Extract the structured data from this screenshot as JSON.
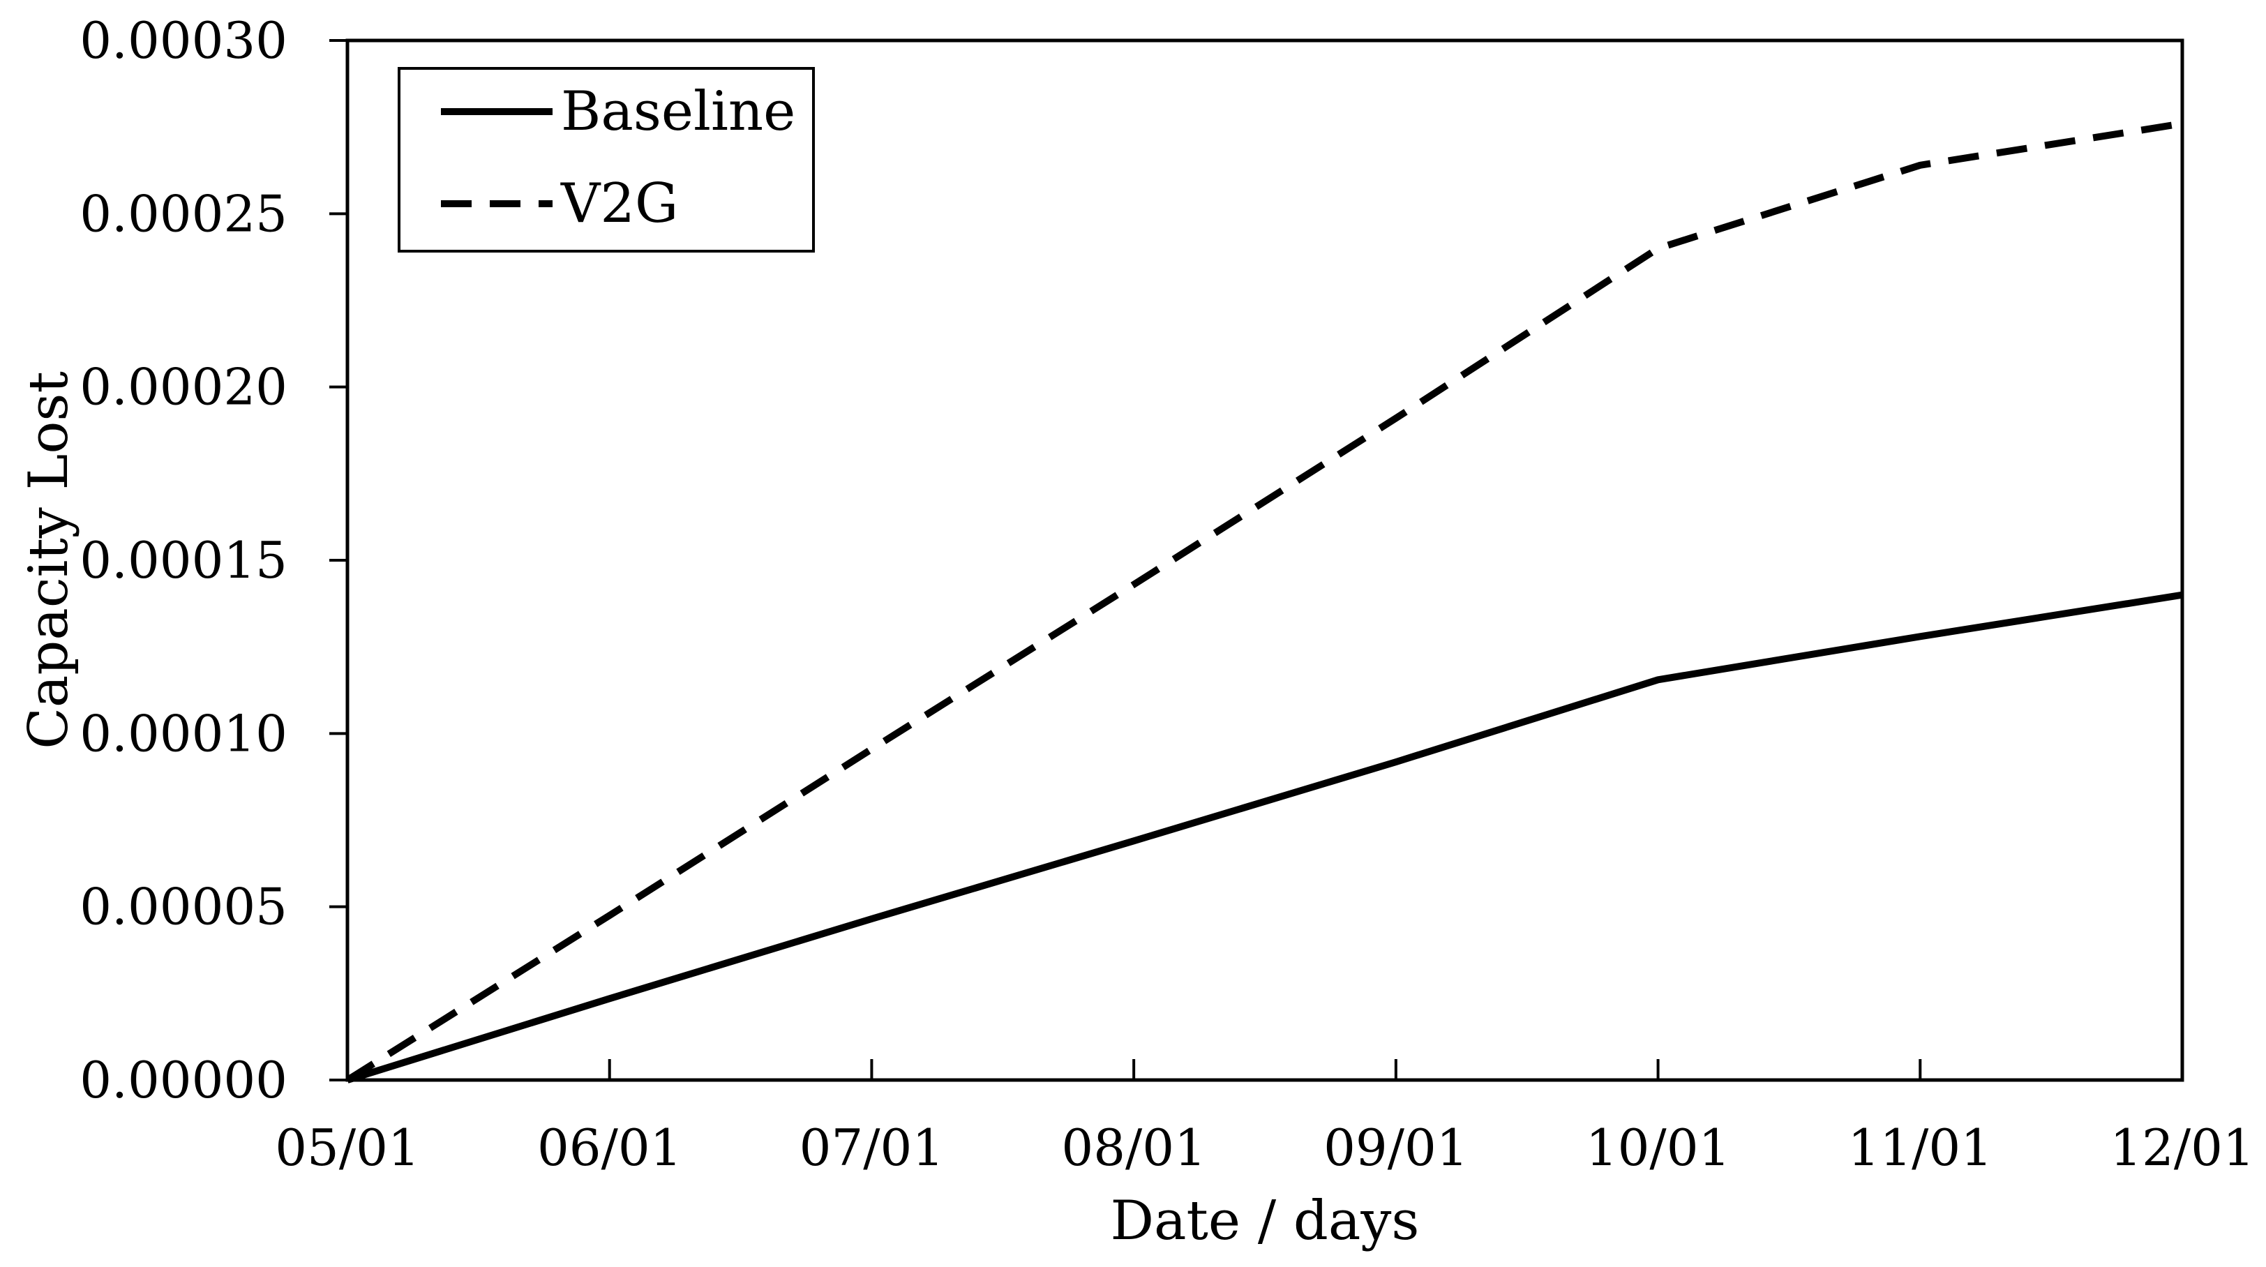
{
  "chart_data": {
    "type": "line",
    "title": "",
    "xlabel": "Date / days",
    "ylabel": "Capacity Lost",
    "x_categories": [
      "05/01",
      "06/01",
      "07/01",
      "08/01",
      "09/01",
      "10/01",
      "11/01",
      "12/01"
    ],
    "ylim": [
      0,
      0.0003
    ],
    "y_ticks": [
      0,
      5e-05,
      0.0001,
      0.00015,
      0.0002,
      0.00025,
      0.0003
    ],
    "y_tick_labels": [
      "0.00000",
      "0.00005",
      "0.00010",
      "0.00015",
      "0.00020",
      "0.00025",
      "0.00030"
    ],
    "grid": false,
    "legend_position": "top-left",
    "series": [
      {
        "name": "Baseline",
        "style": "solid",
        "color": "#000000",
        "values": [
          0.0,
          2.35e-05,
          4.65e-05,
          6.9e-05,
          9.18e-05,
          0.0001155,
          0.000128,
          0.00014
        ]
      },
      {
        "name": "V2G",
        "style": "dashed",
        "color": "#000000",
        "values": [
          0.0,
          4.75e-05,
          9.55e-05,
          0.000143,
          0.000191,
          0.00024,
          0.000264,
          0.000276
        ]
      }
    ]
  }
}
